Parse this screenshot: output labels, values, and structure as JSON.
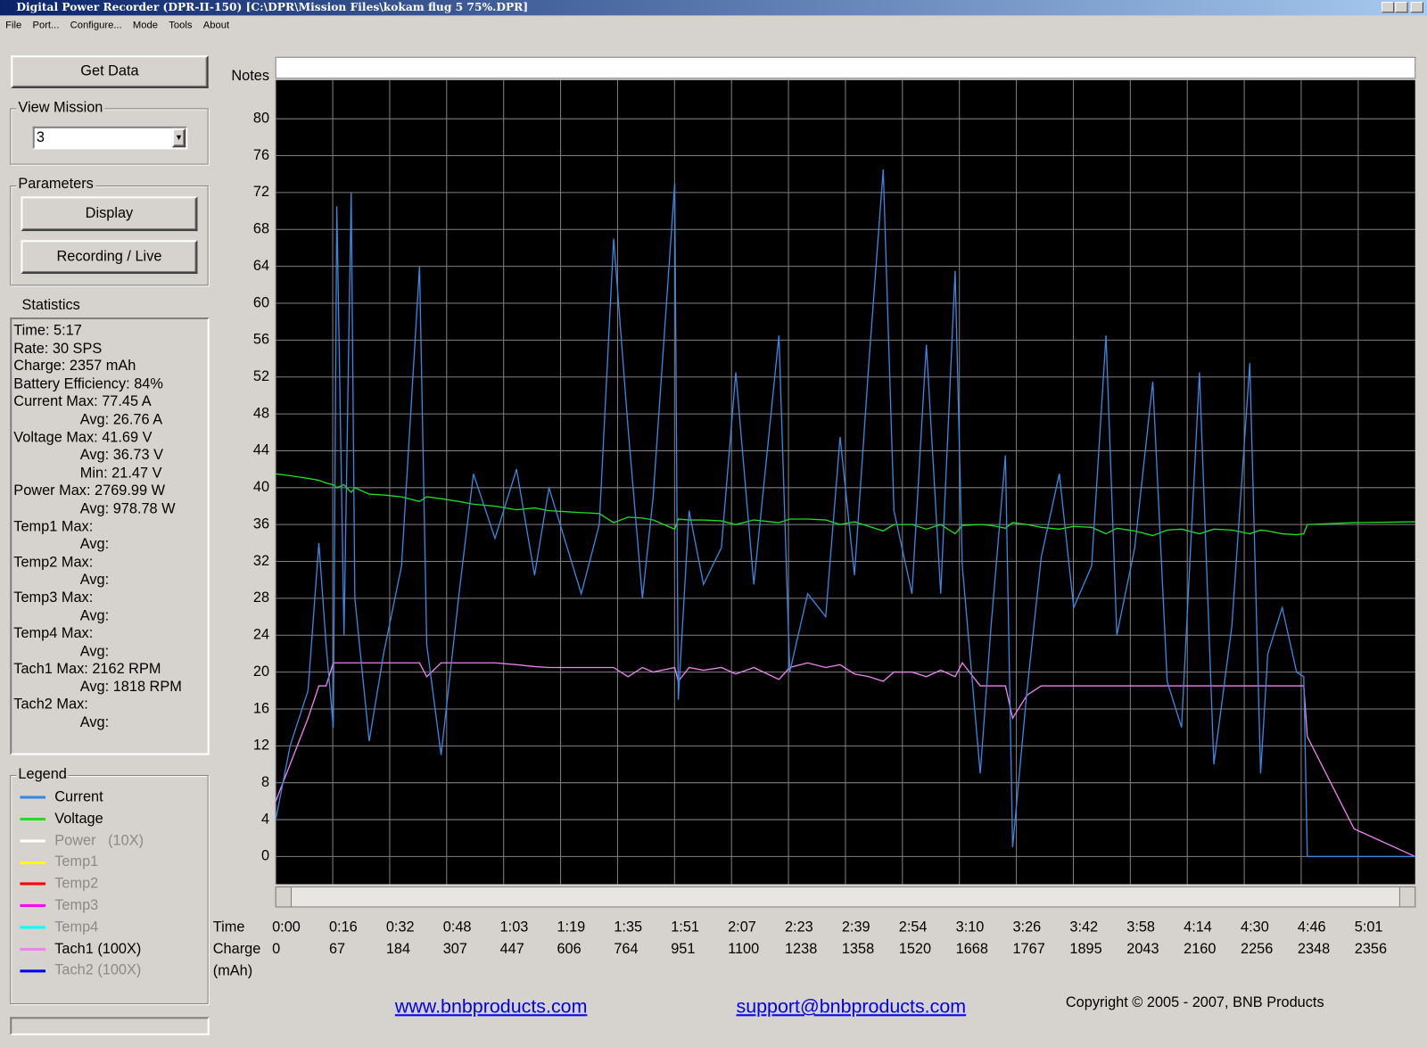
{
  "window": {
    "title": "Digital Power Recorder (DPR-II-150) [C:\\DPR\\Mission Files\\kokam flug 5 75%.DPR]"
  },
  "menu": [
    "File",
    "Port...",
    "Configure...",
    "Mode",
    "Tools",
    "About"
  ],
  "sidebar": {
    "get_data": "Get Data",
    "view_mission": {
      "label": "View Mission",
      "value": "3"
    },
    "parameters": {
      "label": "Parameters",
      "display": "Display",
      "recording": "Recording / Live"
    },
    "statistics": {
      "label": "Statistics",
      "lines": [
        "Time: 5:17",
        "Rate: 30 SPS",
        "Charge: 2357 mAh",
        "Battery Efficiency: 84%",
        "Current Max: 77.45 A",
        "Avg: 26.76 A",
        "Voltage Max: 41.69 V",
        "Avg: 36.73 V",
        "Min: 21.47 V",
        "Power Max: 2769.99 W",
        "Avg: 978.78 W",
        "Temp1 Max:",
        "Avg:",
        "Temp2 Max:",
        "Avg:",
        "Temp3 Max:",
        "Avg:",
        "Temp4 Max:",
        "Avg:",
        "Tach1 Max: 2162 RPM",
        "Avg: 1818 RPM",
        "Tach2 Max:",
        "Avg:"
      ]
    },
    "legend_label": "Legend"
  },
  "notes_label": "Notes",
  "chart_data": {
    "type": "line",
    "x_label": "Time",
    "charge_label": "Charge",
    "charge_unit": "(mAh)",
    "xlim": [
      0,
      317
    ],
    "ylim": [
      -3,
      84.2
    ],
    "grid": true,
    "yticks": [
      0,
      4,
      8,
      12,
      16,
      20,
      24,
      28,
      32,
      36,
      40,
      44,
      48,
      52,
      56,
      60,
      64,
      68,
      72,
      76,
      80
    ],
    "xticks": [
      {
        "value": 0,
        "label": "0:00"
      },
      {
        "value": 15.85,
        "label": "0:16"
      },
      {
        "value": 31.7,
        "label": "0:32"
      },
      {
        "value": 47.55,
        "label": "0:48"
      },
      {
        "value": 63.4,
        "label": "1:03"
      },
      {
        "value": 79.25,
        "label": "1:19"
      },
      {
        "value": 95.1,
        "label": "1:35"
      },
      {
        "value": 110.95,
        "label": "1:51"
      },
      {
        "value": 126.8,
        "label": "2:07"
      },
      {
        "value": 142.65,
        "label": "2:23"
      },
      {
        "value": 158.5,
        "label": "2:39"
      },
      {
        "value": 174.35,
        "label": "2:54"
      },
      {
        "value": 190.2,
        "label": "3:10"
      },
      {
        "value": 206.05,
        "label": "3:26"
      },
      {
        "value": 221.9,
        "label": "3:42"
      },
      {
        "value": 237.75,
        "label": "3:58"
      },
      {
        "value": 253.6,
        "label": "4:14"
      },
      {
        "value": 269.45,
        "label": "4:30"
      },
      {
        "value": 285.3,
        "label": "4:46"
      },
      {
        "value": 301.15,
        "label": "5:01"
      }
    ],
    "charge_labels": [
      0,
      67,
      184,
      307,
      447,
      606,
      764,
      951,
      1100,
      1238,
      1358,
      1520,
      1668,
      1767,
      1895,
      2043,
      2160,
      2256,
      2348,
      2356
    ],
    "x": [
      0,
      4,
      9,
      12,
      14,
      16,
      17,
      19,
      21,
      22,
      26,
      30,
      35,
      40,
      42,
      46,
      51,
      55,
      61,
      67,
      72,
      76,
      85,
      90,
      94,
      98,
      102,
      105,
      111,
      112,
      115,
      119,
      124,
      128,
      133,
      140,
      143,
      148,
      153,
      157,
      161,
      165,
      169,
      172,
      177,
      181,
      185,
      189,
      191,
      196,
      199,
      203,
      205,
      209,
      213,
      218,
      222,
      227,
      231,
      234,
      239,
      244,
      248,
      252,
      257,
      261,
      266,
      271,
      274,
      276,
      280,
      284,
      286,
      287,
      300,
      317
    ],
    "series": [
      {
        "name": "Current",
        "color": "#3b86e0",
        "active": true,
        "values": [
          4,
          12,
          18,
          34,
          23,
          14,
          70.5,
          24,
          72,
          28,
          12.5,
          22,
          31.5,
          64,
          23,
          11,
          28.5,
          41.5,
          34.5,
          42,
          30.5,
          40,
          28.5,
          36,
          67,
          46.5,
          28,
          39,
          73,
          17,
          37.5,
          29.5,
          33.5,
          52.5,
          29.5,
          56.5,
          20,
          28.5,
          26,
          45.5,
          30.5,
          53.5,
          74.5,
          37.5,
          28.5,
          55.5,
          28.5,
          63.5,
          31.5,
          9,
          25,
          43.5,
          1,
          18,
          32.5,
          41.5,
          27,
          31.5,
          56.5,
          24,
          33.5,
          51.5,
          19,
          14,
          52.5,
          10,
          25,
          53.5,
          9,
          22,
          27,
          20,
          19.5,
          0,
          0,
          0
        ]
      },
      {
        "name": "Voltage",
        "color": "#22dd22",
        "active": true,
        "values": [
          41.5,
          41.3,
          41,
          40.8,
          40.5,
          40.3,
          40,
          40.3,
          39.5,
          40,
          39.3,
          39.2,
          39,
          38.5,
          39,
          38.8,
          38.5,
          38.2,
          38,
          37.6,
          37.8,
          37.5,
          37.3,
          37.2,
          36.2,
          36.8,
          36.7,
          36.5,
          35.5,
          36.6,
          36.5,
          36.5,
          36.4,
          36,
          36.5,
          36.2,
          36.6,
          36.6,
          36.5,
          36,
          36.3,
          35.8,
          35.3,
          36,
          36,
          35.5,
          36,
          35,
          35.9,
          36,
          35.9,
          35.6,
          36.2,
          36,
          35.7,
          35.5,
          35.8,
          35.7,
          35,
          35.6,
          35.3,
          34.8,
          35.4,
          35.5,
          35,
          35.5,
          35.4,
          35,
          35.4,
          35.3,
          35,
          34.9,
          35,
          36,
          36.2,
          36.3
        ]
      },
      {
        "name": "Power   (10X)",
        "color": "#ffffff",
        "active": false,
        "values": null
      },
      {
        "name": "Temp1",
        "color": "#ffff00",
        "active": false,
        "values": null
      },
      {
        "name": "Temp2",
        "color": "#ff0000",
        "active": false,
        "values": null
      },
      {
        "name": "Temp3",
        "color": "#ff00ff",
        "active": false,
        "values": null
      },
      {
        "name": "Temp4",
        "color": "#00ffff",
        "active": false,
        "values": null
      },
      {
        "name": "Tach1 (100X)",
        "color": "#ee82ee",
        "active": true,
        "values": [
          6,
          10,
          15,
          18.5,
          18.5,
          21,
          21,
          21,
          21,
          21,
          21,
          21,
          21,
          21,
          19.5,
          21,
          21,
          21,
          21,
          20.8,
          20.6,
          20.5,
          20.5,
          20.5,
          20.5,
          19.5,
          20.5,
          20,
          20.5,
          19,
          20.5,
          20.2,
          20.5,
          19.8,
          20.5,
          19.2,
          20.5,
          21,
          20.5,
          20.8,
          19.8,
          19.5,
          19,
          20,
          20,
          19.5,
          20.2,
          19.5,
          21,
          18.5,
          18.5,
          18.5,
          15,
          17.5,
          18.5,
          18.5,
          18.5,
          18.5,
          18.5,
          18.5,
          18.5,
          18.5,
          18.5,
          18.5,
          18.5,
          18.5,
          18.5,
          18.5,
          18.5,
          18.5,
          18.5,
          18.5,
          18.5,
          13,
          3,
          0
        ]
      },
      {
        "name": "Tach2 (100X)",
        "color": "#0000ee",
        "active": false,
        "values": null
      }
    ]
  },
  "footer": {
    "website": "www.bnbproducts.com",
    "email": "support@bnbproducts.com",
    "copyright": "Copyright © 2005 - 2007, BNB Products"
  }
}
